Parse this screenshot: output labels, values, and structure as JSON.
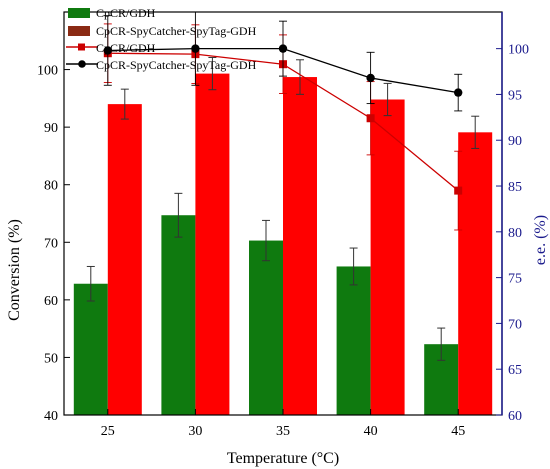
{
  "chart_data": {
    "type": "bar",
    "xlabel": "Temperature (°C)",
    "ylabel": "Conversion (%)",
    "y2label": "e.e. (%)",
    "categories": [
      "25",
      "30",
      "35",
      "40",
      "45"
    ],
    "ylim": [
      40,
      110
    ],
    "y2lim": [
      60,
      104
    ],
    "yticks": [
      40,
      50,
      60,
      70,
      80,
      90,
      100
    ],
    "y2ticks": [
      60,
      65,
      70,
      75,
      80,
      85,
      90,
      95,
      100
    ],
    "bar_series": [
      {
        "name": "CpCR/GDH",
        "values": [
          62.8,
          74.7,
          70.3,
          65.8,
          52.3
        ],
        "errors": [
          3.0,
          3.8,
          3.5,
          3.2,
          2.8
        ],
        "color": "#0f7a0f"
      },
      {
        "name": "CpCR-SpyCatcher-SpyTag-GDH",
        "values": [
          94.0,
          99.3,
          98.7,
          94.8,
          89.1
        ],
        "errors": [
          2.6,
          2.8,
          3.0,
          2.8,
          2.8
        ],
        "color": "#ff0000"
      }
    ],
    "line_series": [
      {
        "name": "CpCR/GDH",
        "values": [
          99.5,
          99.4,
          98.3,
          92.4,
          84.5
        ],
        "errors": [
          3.2,
          3.2,
          3.2,
          4.0,
          4.3
        ],
        "marker": "square",
        "color": "#cc0000"
      },
      {
        "name": "CpCR-SpyCatcher-SpyTag-GDH",
        "values": [
          99.8,
          100.0,
          100.0,
          96.8,
          95.2
        ],
        "errors": [
          3.8,
          4.0,
          3.0,
          2.8,
          2.0
        ],
        "marker": "circle",
        "color": "#000000"
      }
    ],
    "axis_colors": {
      "left": "#000000",
      "right": "#1a1a8c"
    },
    "legend_position": "top-left"
  }
}
